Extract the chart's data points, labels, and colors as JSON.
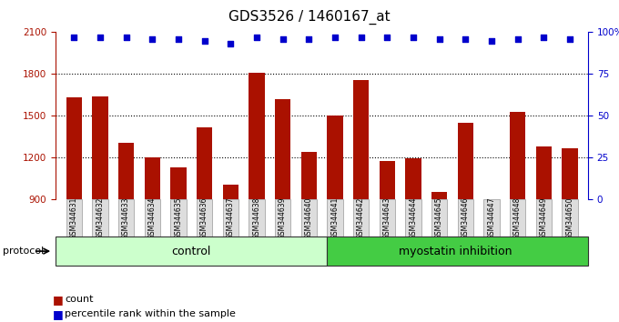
{
  "title": "GDS3526 / 1460167_at",
  "samples": [
    "GSM344631",
    "GSM344632",
    "GSM344633",
    "GSM344634",
    "GSM344635",
    "GSM344636",
    "GSM344637",
    "GSM344638",
    "GSM344639",
    "GSM344640",
    "GSM344641",
    "GSM344642",
    "GSM344643",
    "GSM344644",
    "GSM344645",
    "GSM344646",
    "GSM344647",
    "GSM344648",
    "GSM344649",
    "GSM344650"
  ],
  "counts": [
    1635,
    1640,
    1310,
    1205,
    1130,
    1415,
    1010,
    1810,
    1620,
    1240,
    1500,
    1760,
    1175,
    1195,
    955,
    1450,
    870,
    1530,
    1280,
    1265
  ],
  "percentile_ranks": [
    97,
    97,
    97,
    96,
    96,
    95,
    93,
    97,
    96,
    96,
    97,
    97,
    97,
    97,
    96,
    96,
    95,
    96,
    97,
    96
  ],
  "control_count": 10,
  "myostatin_count": 10,
  "ylim_left": [
    900,
    2100
  ],
  "ylim_right": [
    0,
    100
  ],
  "yticks_left": [
    900,
    1200,
    1500,
    1800,
    2100
  ],
  "yticks_right": [
    0,
    25,
    50,
    75,
    100
  ],
  "bar_color": "#aa1100",
  "dot_color": "#0000cc",
  "control_bg": "#ccffcc",
  "myostatin_bg": "#44cc44",
  "tick_label_bg": "#dddddd",
  "grid_color": "#000000",
  "protocol_label": "protocol",
  "control_label": "control",
  "myostatin_label": "myostatin inhibition",
  "legend_count_label": "count",
  "legend_pct_label": "percentile rank within the sample",
  "title_fontsize": 11,
  "axis_fontsize": 8,
  "tick_fontsize": 7.5
}
